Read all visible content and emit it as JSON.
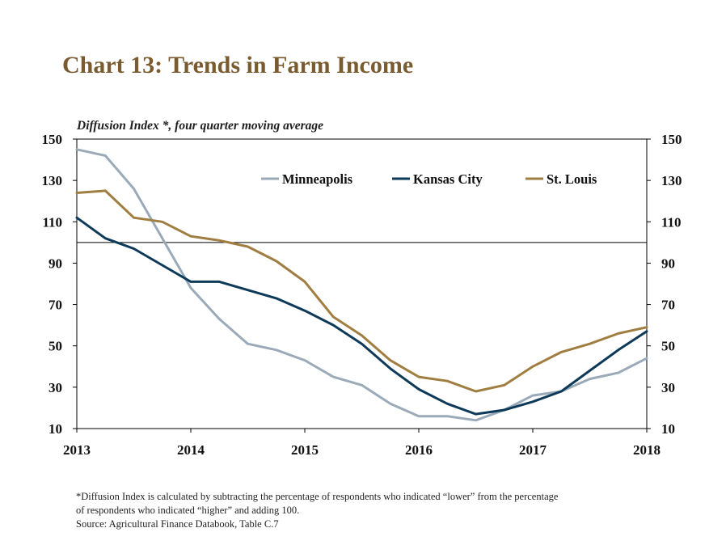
{
  "title": "Chart 13: Trends in Farm Income",
  "subtitle": "Diffusion Index *, four quarter moving average",
  "footnote": {
    "line1": "*Diffusion Index is calculated by subtracting the percentage of respondents who indicated “lower” from the percentage",
    "line2": "of respondents who indicated “higher” and adding 100.",
    "source": "Source: Agricultural Finance Databook, Table C.7"
  },
  "chart_data": {
    "type": "line",
    "title": "Chart 13: Trends in Farm Income",
    "subtitle": "Diffusion Index *, four quarter moving average",
    "xlim": [
      2013,
      2018
    ],
    "ylim": [
      10,
      150
    ],
    "y_ticks": [
      10,
      30,
      50,
      70,
      90,
      110,
      130,
      150
    ],
    "x_ticks": [
      "2013",
      "2014",
      "2015",
      "2016",
      "2017",
      "2018"
    ],
    "reference_line": 100,
    "grid": false,
    "legend_position": "top-center",
    "x": [
      2013.0,
      2013.25,
      2013.5,
      2013.75,
      2014.0,
      2014.25,
      2014.5,
      2014.75,
      2015.0,
      2015.25,
      2015.5,
      2015.75,
      2016.0,
      2016.25,
      2016.5,
      2016.75,
      2017.0,
      2017.25,
      2017.5,
      2017.75,
      2018.0
    ],
    "series": [
      {
        "name": "Minneapolis",
        "color": "#9aaab8",
        "values": [
          145,
          142,
          126,
          102,
          78,
          63,
          51,
          48,
          43,
          35,
          31,
          22,
          16,
          16,
          14,
          19,
          26,
          28,
          34,
          37,
          44
        ]
      },
      {
        "name": "Kansas City",
        "color": "#0e3a5a",
        "values": [
          112,
          102,
          97,
          89,
          81,
          81,
          77,
          73,
          67,
          60,
          51,
          39,
          29,
          22,
          17,
          19,
          23,
          28,
          38,
          48,
          57
        ]
      },
      {
        "name": "St. Louis",
        "color": "#a07d40",
        "values": [
          124,
          125,
          112,
          110,
          103,
          101,
          98,
          91,
          81,
          64,
          55,
          43,
          35,
          33,
          28,
          31,
          40,
          47,
          51,
          56,
          59
        ]
      }
    ]
  }
}
